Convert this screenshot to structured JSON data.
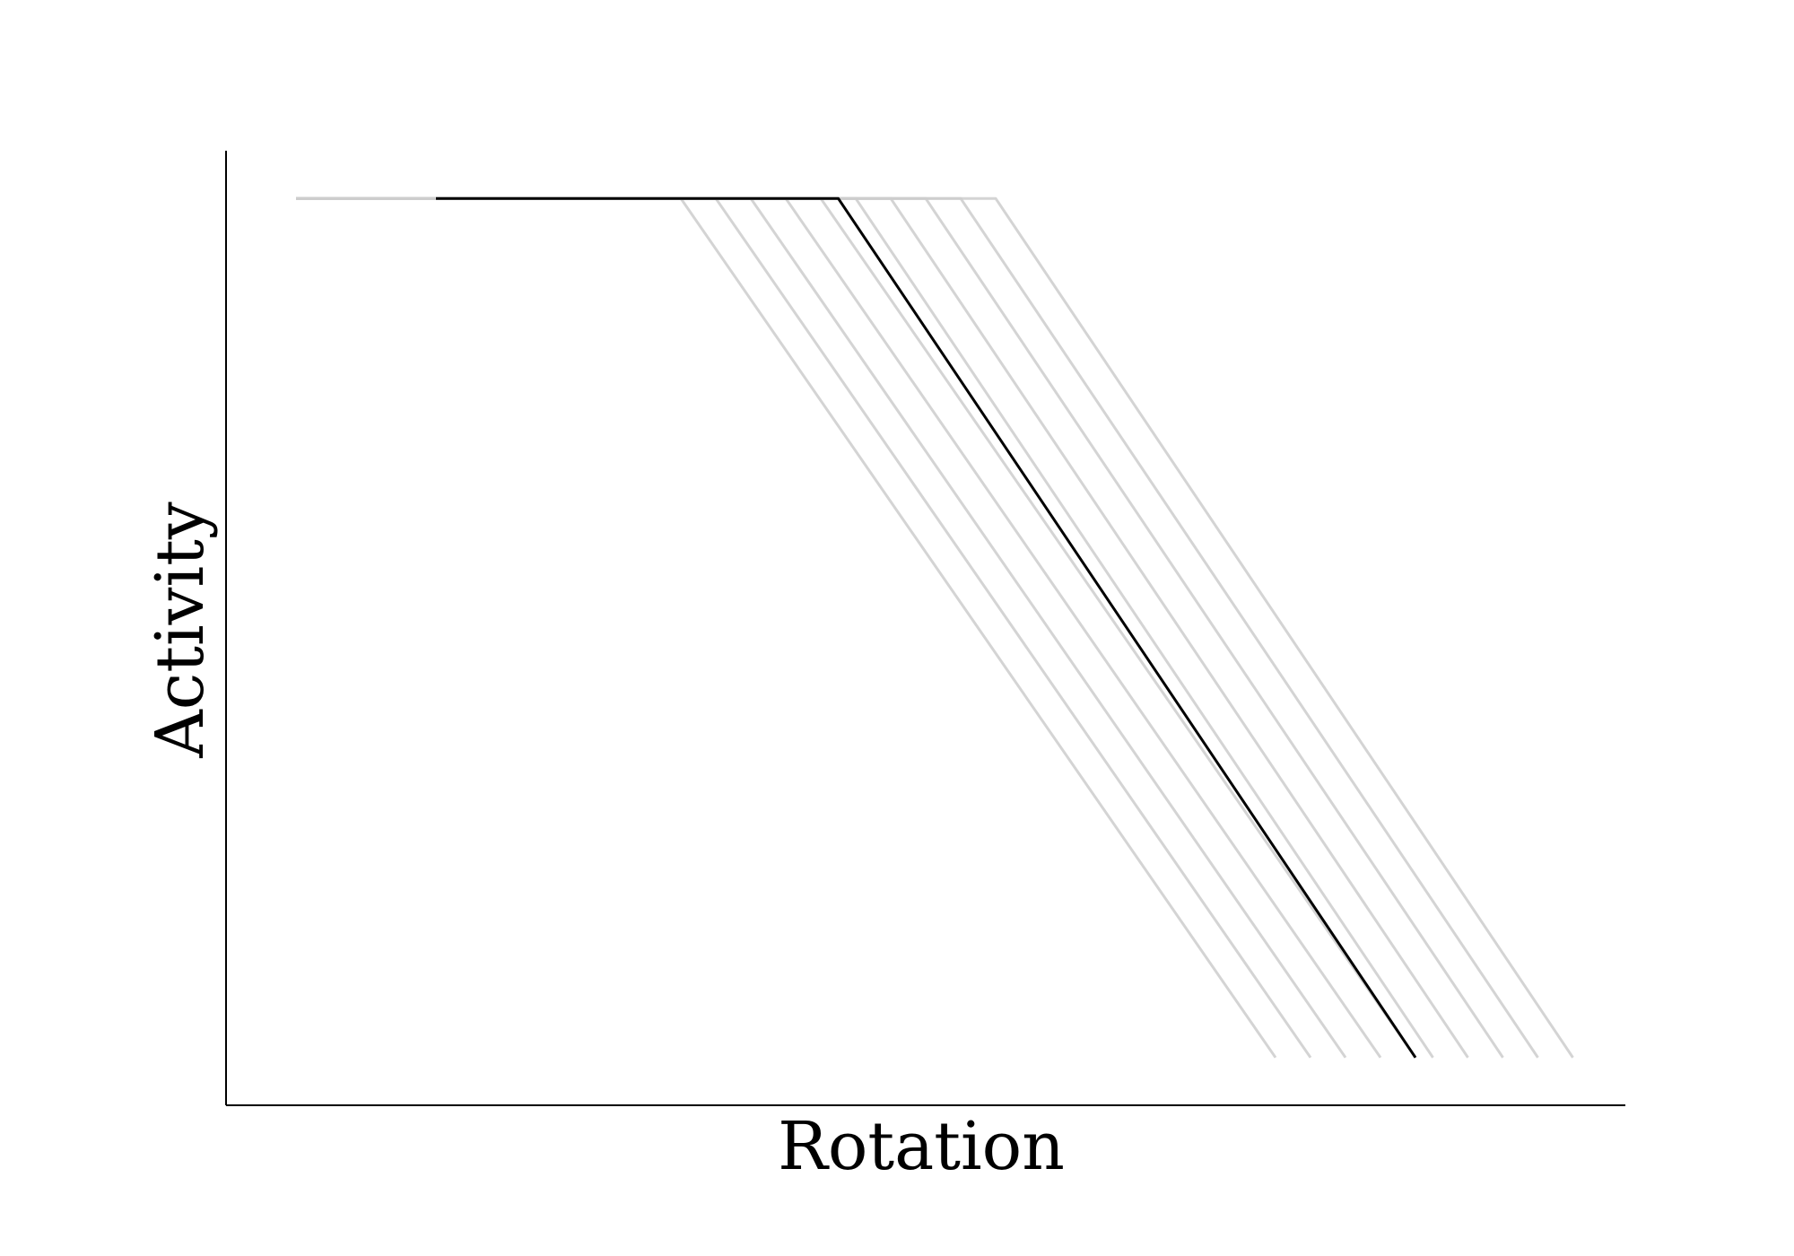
{
  "chart_data": {
    "type": "line",
    "title": "",
    "xlabel": "Rotation",
    "ylabel": "Activity",
    "xlim": [
      0,
      20
    ],
    "ylim": [
      0,
      1
    ],
    "xticks": [],
    "yticks": [],
    "grid": false,
    "legend": "none",
    "colors": {
      "highlight": "#000000",
      "background_series": "#cccccc",
      "axis": "#000000"
    },
    "series": [
      {
        "values": [
          [
            1.0,
            0.95
          ],
          [
            6.5,
            0.95
          ],
          [
            15.0,
            0.05
          ]
        ],
        "highlight": false
      },
      {
        "values": [
          [
            1.0,
            0.95
          ],
          [
            7.0,
            0.95
          ],
          [
            15.5,
            0.05
          ]
        ],
        "highlight": false
      },
      {
        "values": [
          [
            1.0,
            0.95
          ],
          [
            7.5,
            0.95
          ],
          [
            16.0,
            0.05
          ]
        ],
        "highlight": false
      },
      {
        "values": [
          [
            1.0,
            0.95
          ],
          [
            8.0,
            0.95
          ],
          [
            16.5,
            0.05
          ]
        ],
        "highlight": false
      },
      {
        "values": [
          [
            1.0,
            0.95
          ],
          [
            8.5,
            0.95
          ],
          [
            17.0,
            0.05
          ]
        ],
        "highlight": false
      },
      {
        "values": [
          [
            1.0,
            0.95
          ],
          [
            9.0,
            0.95
          ],
          [
            17.25,
            0.05
          ]
        ],
        "highlight": false
      },
      {
        "values": [
          [
            1.0,
            0.95
          ],
          [
            9.5,
            0.95
          ],
          [
            17.75,
            0.05
          ]
        ],
        "highlight": false
      },
      {
        "values": [
          [
            1.0,
            0.95
          ],
          [
            10.0,
            0.95
          ],
          [
            18.25,
            0.05
          ]
        ],
        "highlight": false
      },
      {
        "values": [
          [
            1.0,
            0.95
          ],
          [
            10.5,
            0.95
          ],
          [
            18.75,
            0.05
          ]
        ],
        "highlight": false
      },
      {
        "values": [
          [
            1.0,
            0.95
          ],
          [
            11.0,
            0.95
          ],
          [
            19.25,
            0.05
          ]
        ],
        "highlight": false
      },
      {
        "values": [
          [
            3.0,
            0.95
          ],
          [
            8.75,
            0.95
          ],
          [
            17.0,
            0.05
          ]
        ],
        "highlight": true
      }
    ]
  }
}
